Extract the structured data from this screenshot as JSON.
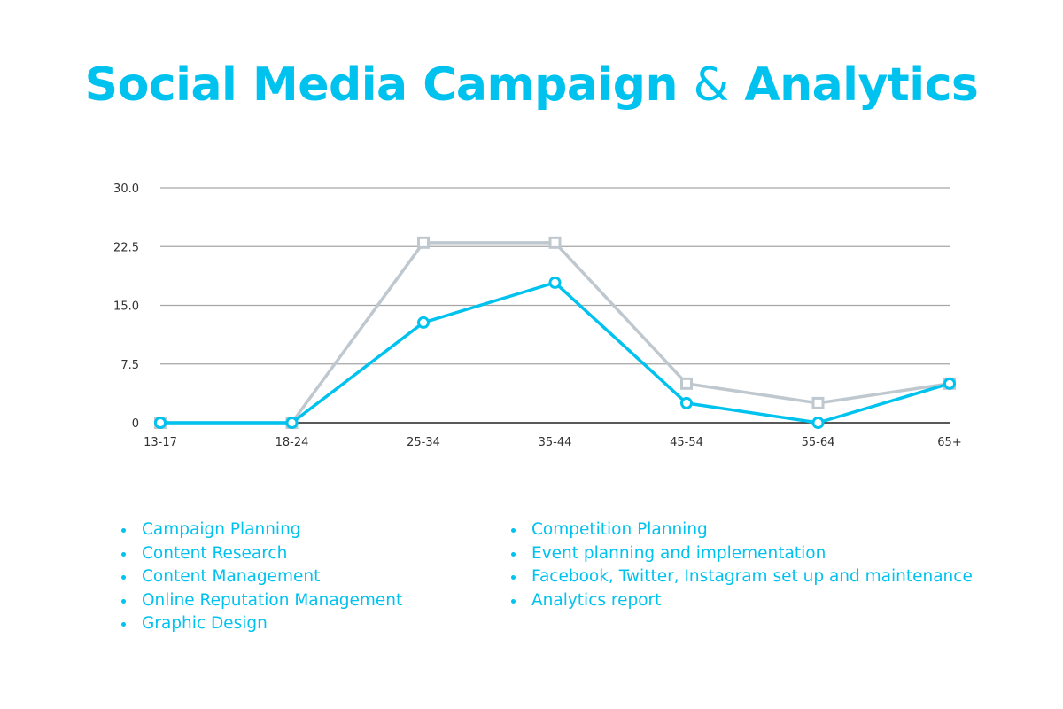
{
  "title": {
    "part1": "Social Media Campaign",
    "amp": "&",
    "part2": "Analytics"
  },
  "colors": {
    "accent": "#00c2ee",
    "secondary_series": "#bfc8cf",
    "grid": "#a6a6a6",
    "axis": "#222222",
    "tick_text": "#333333"
  },
  "chart_data": {
    "type": "line",
    "categories": [
      "13-17",
      "18-24",
      "25-34",
      "35-44",
      "45-54",
      "55-64",
      "65+"
    ],
    "y_ticks": [
      "30.0",
      "22.5",
      "15.0",
      "7.5",
      "0"
    ],
    "ylim": [
      0,
      30
    ],
    "grid": true,
    "series": [
      {
        "color": "#bfc8cf",
        "marker": "square",
        "values": [
          0,
          0,
          23,
          23,
          5,
          2.5,
          5
        ]
      },
      {
        "color": "#00c2ee",
        "marker": "circle",
        "values": [
          0,
          0,
          12.8,
          17.9,
          2.5,
          0,
          5
        ]
      }
    ]
  },
  "services": {
    "left": [
      "Campaign Planning",
      "Content Research",
      "Content Management",
      "Online Reputation Management",
      "Graphic Design"
    ],
    "right": [
      "Competition Planning",
      "Event planning and implementation",
      "Facebook, Twitter, Instagram set up and maintenance",
      "Analytics report"
    ]
  }
}
